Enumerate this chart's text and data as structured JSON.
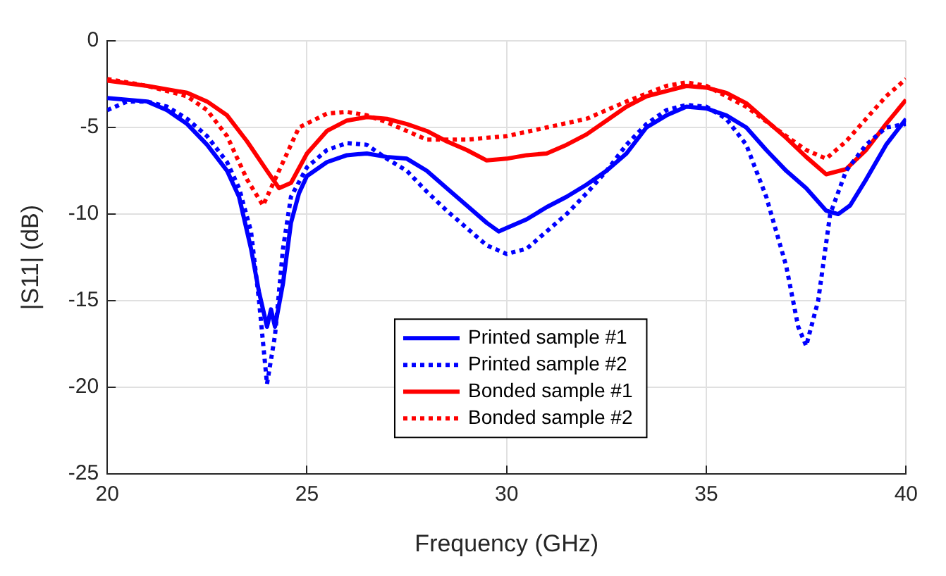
{
  "chart_data": {
    "type": "line",
    "xlabel": "Frequency (GHz)",
    "ylabel": "|S11| (dB)",
    "xlim": [
      20,
      40
    ],
    "xticks": [
      20,
      25,
      30,
      35,
      40
    ],
    "ylim": [
      -25,
      0
    ],
    "yticks": [
      -25,
      -20,
      -15,
      -10,
      -5,
      0
    ],
    "grid": true,
    "legend": "bottom",
    "marker": "none",
    "series": [
      {
        "name": "Printed sample #1",
        "color": "#0000ff",
        "line_style": "solid",
        "x": [
          20,
          21,
          21.5,
          22,
          22.5,
          23,
          23.3,
          23.6,
          23.8,
          24,
          24.1,
          24.2,
          24.4,
          24.6,
          24.8,
          25,
          25.5,
          26,
          26.5,
          27,
          27.5,
          28,
          28.5,
          29,
          29.5,
          29.8,
          30,
          30.5,
          31,
          31.5,
          32,
          32.5,
          33,
          33.5,
          34,
          34.5,
          35,
          35.5,
          36,
          36.5,
          37,
          37.5,
          38,
          38.3,
          38.6,
          39,
          39.5,
          40
        ],
        "values": [
          -3.3,
          -3.5,
          -4,
          -4.8,
          -6,
          -7.5,
          -9,
          -12,
          -14.5,
          -16.5,
          -15.5,
          -16.5,
          -14,
          -10.5,
          -8.8,
          -7.8,
          -7,
          -6.6,
          -6.5,
          -6.7,
          -6.8,
          -7.5,
          -8.5,
          -9.5,
          -10.5,
          -11,
          -10.8,
          -10.3,
          -9.6,
          -9,
          -8.3,
          -7.5,
          -6.5,
          -5,
          -4.3,
          -3.8,
          -3.9,
          -4.3,
          -5,
          -6.3,
          -7.5,
          -8.5,
          -9.8,
          -10,
          -9.5,
          -8,
          -6,
          -4.5
        ]
      },
      {
        "name": "Printed sample #2",
        "color": "#0000ff",
        "line_style": "dotted",
        "x": [
          20,
          20.5,
          21,
          21.5,
          22,
          22.5,
          23,
          23.3,
          23.6,
          23.8,
          24,
          24.2,
          24.4,
          24.6,
          25,
          25.5,
          26,
          26.5,
          27,
          27.5,
          28,
          28.5,
          29,
          29.5,
          30,
          30.5,
          31,
          31.5,
          32,
          32.5,
          33,
          33.5,
          34,
          34.5,
          35,
          35.5,
          36,
          36.5,
          37,
          37.3,
          37.5,
          37.8,
          38.1,
          38.5,
          39,
          39.5,
          40
        ],
        "values": [
          -4,
          -3.5,
          -3.5,
          -3.8,
          -4.5,
          -5.5,
          -7,
          -8.5,
          -11,
          -15,
          -19.8,
          -17,
          -12,
          -9,
          -7.3,
          -6.3,
          -5.9,
          -6,
          -6.8,
          -7.5,
          -8.7,
          -9.8,
          -10.8,
          -11.8,
          -12.3,
          -12,
          -11,
          -10,
          -8.8,
          -7.5,
          -6,
          -4.8,
          -4,
          -3.7,
          -3.8,
          -4.5,
          -6,
          -9,
          -13,
          -16.5,
          -17.6,
          -15,
          -10,
          -7.5,
          -6,
          -5,
          -4.8
        ]
      },
      {
        "name": "Bonded sample #1",
        "color": "#ff0000",
        "line_style": "solid",
        "x": [
          20,
          21,
          22,
          22.5,
          23,
          23.5,
          24,
          24.3,
          24.6,
          25,
          25.5,
          26,
          26.5,
          27,
          27.5,
          28,
          28.5,
          29,
          29.5,
          30,
          30.5,
          31,
          31.5,
          32,
          32.5,
          33,
          33.5,
          34,
          34.5,
          35,
          35.5,
          36,
          36.5,
          37,
          37.5,
          38,
          38.5,
          39,
          39.5,
          40
        ],
        "values": [
          -2.3,
          -2.6,
          -3,
          -3.5,
          -4.3,
          -5.8,
          -7.5,
          -8.5,
          -8.2,
          -6.5,
          -5.2,
          -4.6,
          -4.4,
          -4.5,
          -4.8,
          -5.2,
          -5.8,
          -6.3,
          -6.9,
          -6.8,
          -6.6,
          -6.5,
          -6,
          -5.4,
          -4.6,
          -3.8,
          -3.2,
          -2.9,
          -2.6,
          -2.7,
          -3,
          -3.6,
          -4.6,
          -5.6,
          -6.7,
          -7.7,
          -7.4,
          -6.3,
          -4.8,
          -3.4
        ]
      },
      {
        "name": "Bonded sample #2",
        "color": "#ff0000",
        "line_style": "dotted",
        "x": [
          20,
          21,
          22,
          22.5,
          23,
          23.5,
          23.9,
          24.3,
          24.8,
          25.5,
          26,
          26.5,
          27,
          27.5,
          28,
          29,
          30,
          31,
          32,
          33,
          34,
          34.5,
          35,
          36,
          37,
          37.5,
          38,
          38.5,
          39,
          39.5,
          40
        ],
        "values": [
          -2.2,
          -2.6,
          -3.2,
          -4,
          -5.5,
          -8,
          -9.5,
          -7.5,
          -5,
          -4.2,
          -4.1,
          -4.3,
          -4.7,
          -5.2,
          -5.7,
          -5.7,
          -5.5,
          -5,
          -4.5,
          -3.5,
          -2.6,
          -2.4,
          -2.6,
          -3.8,
          -5.5,
          -6.3,
          -6.8,
          -5.8,
          -4.5,
          -3.2,
          -2.2
        ]
      }
    ]
  }
}
